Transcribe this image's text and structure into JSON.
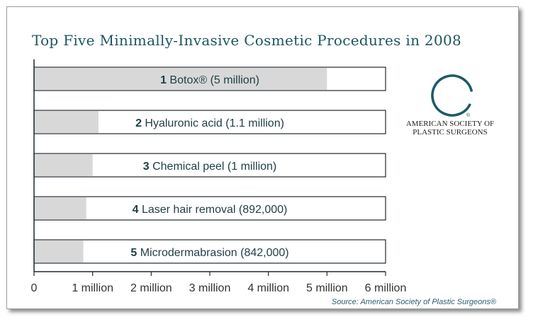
{
  "chart_data": {
    "type": "bar",
    "orientation": "horizontal",
    "title": "Top Five Minimally-Invasive Cosmetic Procedures in 2008",
    "categories": [
      {
        "rank": "1",
        "text": " Botox® (5 million)"
      },
      {
        "rank": "2",
        "text": " Hyaluronic acid (1.1 million)"
      },
      {
        "rank": "3",
        "text": " Chemical peel (1 million)"
      },
      {
        "rank": "4",
        "text": " Laser hair removal (892,000)"
      },
      {
        "rank": "5",
        "text": " Microdermabrasion (842,000)"
      }
    ],
    "values": [
      5000000,
      1100000,
      1000000,
      892000,
      842000
    ],
    "xlim": [
      0,
      6000000
    ],
    "xticks": [
      0,
      1000000,
      2000000,
      3000000,
      4000000,
      5000000,
      6000000
    ],
    "xtick_labels": [
      "0",
      "1 million",
      "2 million",
      "3 million",
      "4 million",
      "5 million",
      "6 million"
    ],
    "grid": false,
    "source": "Source: American Society of Plastic Surgeons®",
    "colors": {
      "fill": "#d8d8d8",
      "bar_border": "#1e2a30",
      "title": "#1d5560",
      "logo_ring": "#1b5a66"
    }
  },
  "logo": {
    "name": "asps-logo-icon",
    "line1": "AMERICAN SOCIETY OF",
    "line2": "PLASTIC SURGEONS"
  }
}
